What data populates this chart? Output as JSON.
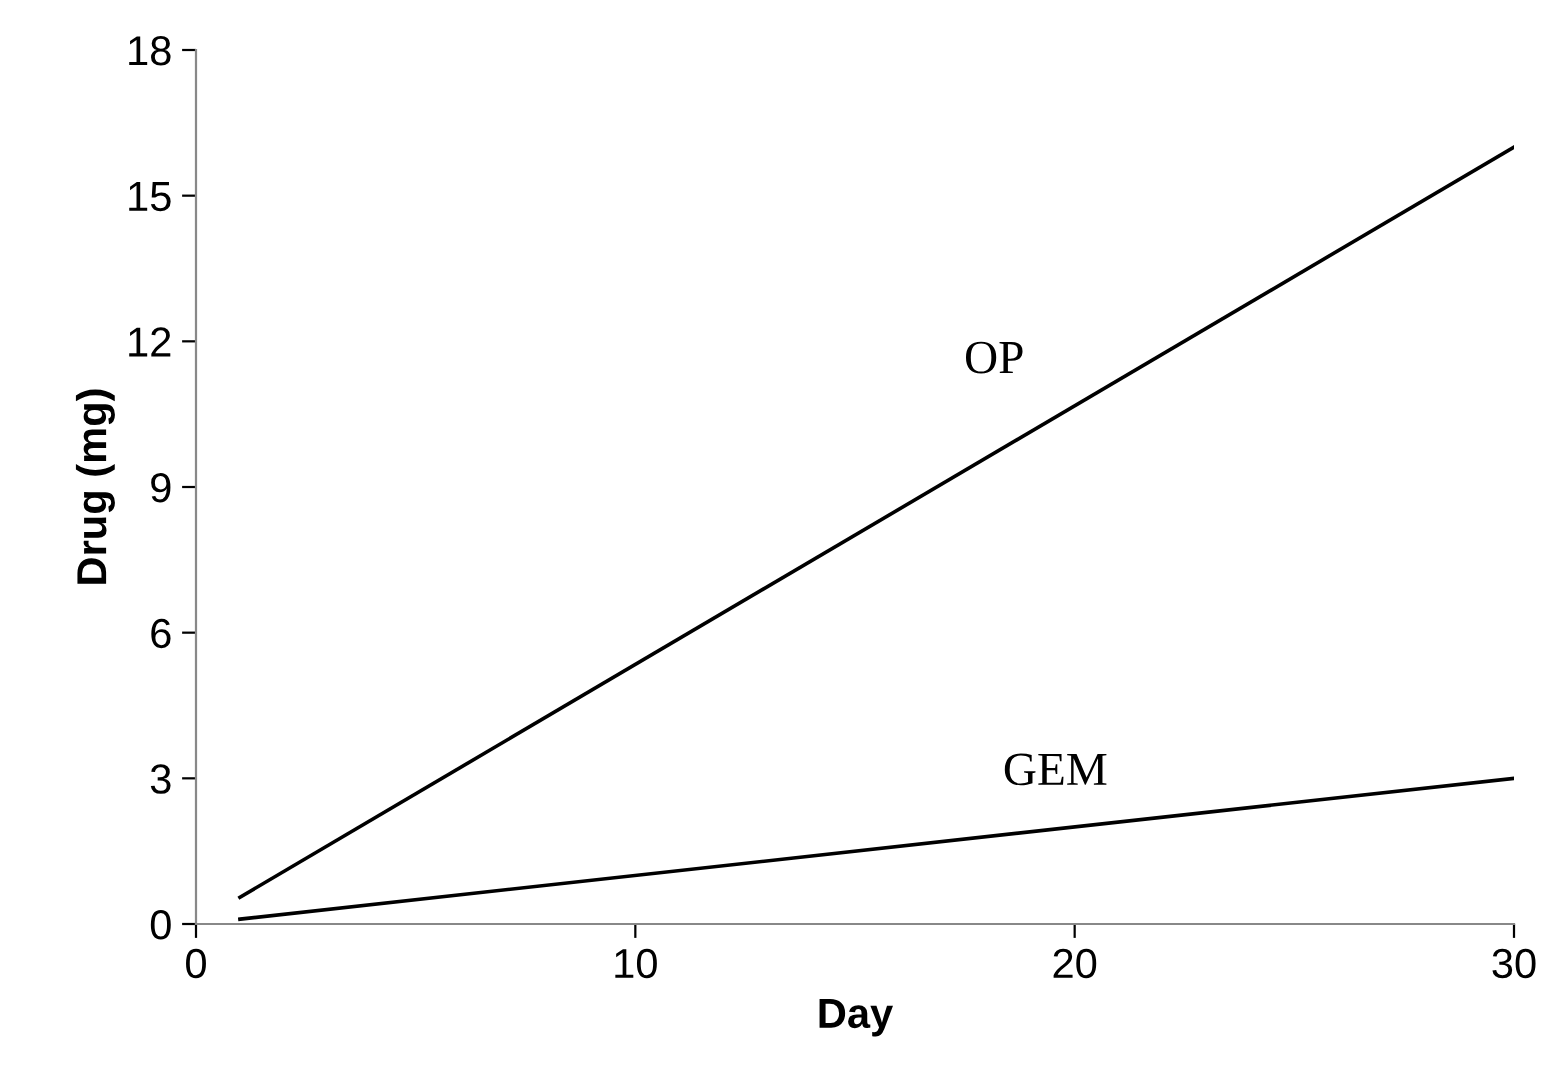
{
  "chart_data": {
    "type": "line",
    "xlabel": "Day",
    "ylabel": "Drug (mg)",
    "x": [
      1,
      30
    ],
    "series": [
      {
        "name": "OP",
        "color": "#000000",
        "values": [
          0.55,
          16
        ]
      },
      {
        "name": "GEM",
        "color": "#000000",
        "values": [
          0.1,
          3
        ]
      }
    ],
    "xlim": [
      0,
      30
    ],
    "xticks": [
      0,
      10,
      20,
      30
    ],
    "ylim": [
      0,
      18
    ],
    "yticks": [
      0,
      3,
      6,
      9,
      12,
      15,
      18
    ],
    "grid": false,
    "legend": false,
    "marker": "none",
    "line_style": "solid"
  }
}
